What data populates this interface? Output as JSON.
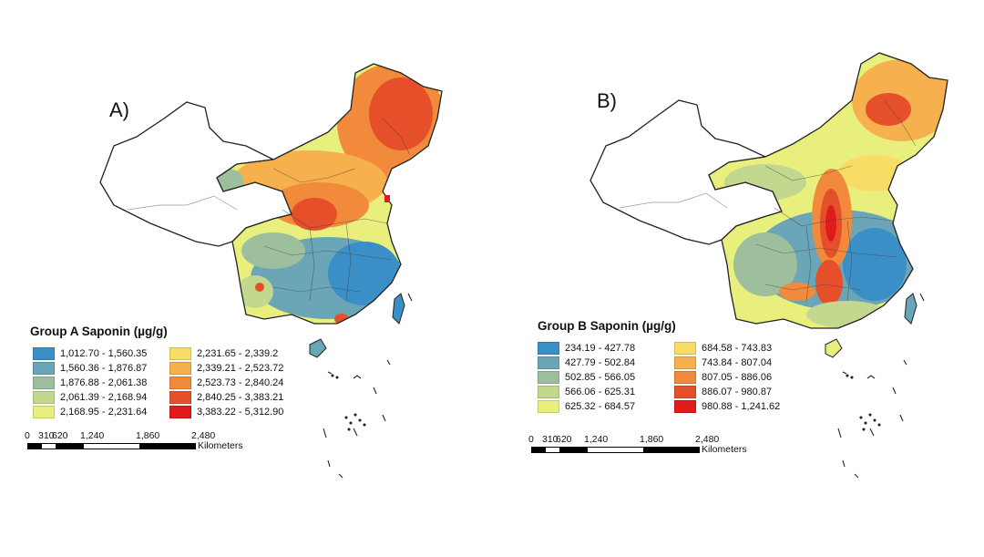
{
  "panels": [
    {
      "id": "A",
      "label": "A)",
      "legend_title": "Group A Saponin (µg/g)",
      "legend": [
        {
          "range": "1,012.70 - 1,560.35",
          "color": "#3a8fc7"
        },
        {
          "range": "1,560.36 - 1,876.87",
          "color": "#6aa5b8"
        },
        {
          "range": "1,876.88 - 2,061.38",
          "color": "#9dbf9e"
        },
        {
          "range": "2,061.39 - 2,168.94",
          "color": "#c3d88f"
        },
        {
          "range": "2,168.95 - 2,231.64",
          "color": "#e9ef7c"
        },
        {
          "range": "2,231.65 - 2,339.2",
          "color": "#f7dd66"
        },
        {
          "range": "2,339.21 - 2,523.72",
          "color": "#f7b04e"
        },
        {
          "range": "2,523.73 - 2,840.24",
          "color": "#f28a3c"
        },
        {
          "range": "2,840.25 - 3,383.21",
          "color": "#e5502a"
        },
        {
          "range": "3,383.22 - 5,312.90",
          "color": "#e01b1b"
        }
      ],
      "scale": {
        "ticks": [
          "0",
          "310",
          "620",
          "1,240",
          "1,860",
          "2,480"
        ],
        "unit": "Kilometers"
      }
    },
    {
      "id": "B",
      "label": "B)",
      "legend_title": "Group B Saponin (µg/g)",
      "legend": [
        {
          "range": "234.19 - 427.78",
          "color": "#3a8fc7"
        },
        {
          "range": "427.79 - 502.84",
          "color": "#6aa5b8"
        },
        {
          "range": "502.85 - 566.05",
          "color": "#9dbf9e"
        },
        {
          "range": "566.06 - 625.31",
          "color": "#c3d88f"
        },
        {
          "range": "625.32 - 684.57",
          "color": "#e9ef7c"
        },
        {
          "range": "684.58 - 743.83",
          "color": "#f7dd66"
        },
        {
          "range": "743.84 - 807.04",
          "color": "#f7b04e"
        },
        {
          "range": "807.05 - 886.06",
          "color": "#f28a3c"
        },
        {
          "range": "886.07 - 980.87",
          "color": "#e5502a"
        },
        {
          "range": "980.88 - 1,241.62",
          "color": "#e01b1b"
        }
      ],
      "scale": {
        "ticks": [
          "0",
          "310",
          "620",
          "1,240",
          "1,860",
          "2,480"
        ],
        "unit": "Kilometers"
      }
    }
  ]
}
